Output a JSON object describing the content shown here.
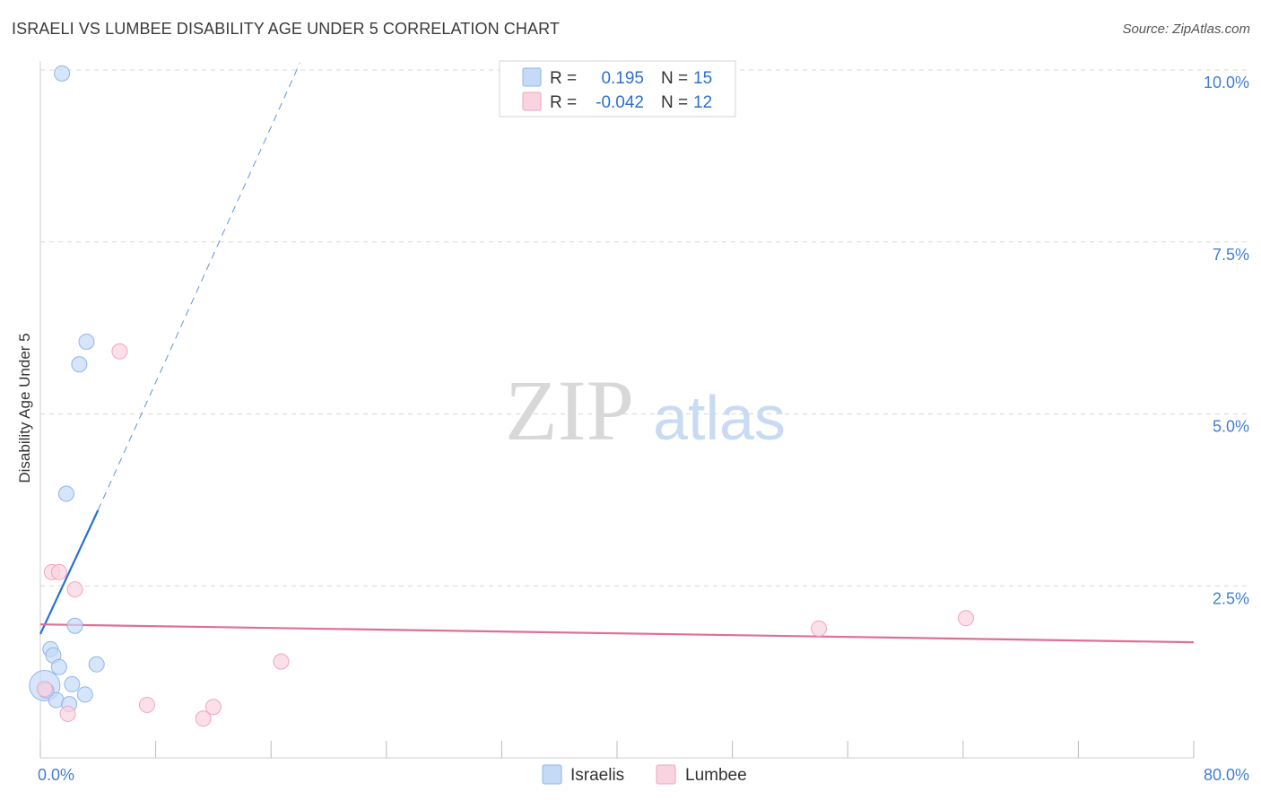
{
  "title": "ISRAELI VS LUMBEE DISABILITY AGE UNDER 5 CORRELATION CHART",
  "source": "Source: ZipAtlas.com",
  "watermark": {
    "zip": "ZIP",
    "atlas": "atlas"
  },
  "colors": {
    "israelis": "#8fb6ea",
    "israelis_fill": "#c5daf6",
    "israelis_line": "#2b6fd6",
    "lumbee": "#f2a6bd",
    "lumbee_fill": "#f9d3df",
    "lumbee_line": "#e06e98",
    "tick_label": "#3f7fd6",
    "grid": "#d8d8d8"
  },
  "chart_data": {
    "type": "scatter",
    "ylabel": "Disability Age Under 5",
    "xlim": [
      0,
      80
    ],
    "ylim": [
      0,
      10
    ],
    "x_ticks": [
      {
        "value": 0,
        "label": "0.0%"
      },
      {
        "value": 80,
        "label": "80.0%"
      }
    ],
    "y_ticks": [
      {
        "value": 2.5,
        "label": "2.5%"
      },
      {
        "value": 5.0,
        "label": "5.0%"
      },
      {
        "value": 7.5,
        "label": "7.5%"
      },
      {
        "value": 10.0,
        "label": "10.0%"
      }
    ],
    "grid": true,
    "legend": {
      "rows": [
        {
          "r_label": "R =",
          "r_value": "0.195",
          "n_label": "N =",
          "n_value": "15"
        },
        {
          "r_label": "R =",
          "r_value": "-0.042",
          "n_label": "N =",
          "n_value": "12"
        }
      ],
      "bottom": [
        "Israelis",
        "Lumbee"
      ]
    },
    "series": [
      {
        "name": "Israelis",
        "points": [
          {
            "x": 1.5,
            "y": 9.95
          },
          {
            "x": 3.2,
            "y": 6.05
          },
          {
            "x": 2.7,
            "y": 5.72
          },
          {
            "x": 1.8,
            "y": 3.84
          },
          {
            "x": 2.4,
            "y": 1.92
          },
          {
            "x": 0.7,
            "y": 1.58
          },
          {
            "x": 0.9,
            "y": 1.49
          },
          {
            "x": 1.3,
            "y": 1.32
          },
          {
            "x": 3.9,
            "y": 1.36
          },
          {
            "x": 0.3,
            "y": 1.05,
            "size": "large"
          },
          {
            "x": 2.2,
            "y": 1.07
          },
          {
            "x": 3.1,
            "y": 0.92
          },
          {
            "x": 1.1,
            "y": 0.84
          },
          {
            "x": 2.0,
            "y": 0.78
          },
          {
            "x": 0.4,
            "y": 0.98
          }
        ],
        "trend": {
          "x0": 0,
          "y0": 1.8,
          "x1": 4.0,
          "y1": 3.6,
          "dashed_to_x": 18,
          "dashed_to_y": 10.1
        }
      },
      {
        "name": "Lumbee",
        "points": [
          {
            "x": 5.5,
            "y": 5.91
          },
          {
            "x": 0.8,
            "y": 2.7
          },
          {
            "x": 1.3,
            "y": 2.7
          },
          {
            "x": 2.4,
            "y": 2.45
          },
          {
            "x": 16.7,
            "y": 1.4
          },
          {
            "x": 0.3,
            "y": 1.0
          },
          {
            "x": 7.4,
            "y": 0.77
          },
          {
            "x": 12.0,
            "y": 0.74
          },
          {
            "x": 11.3,
            "y": 0.57
          },
          {
            "x": 1.9,
            "y": 0.64
          },
          {
            "x": 54.0,
            "y": 1.88
          },
          {
            "x": 64.2,
            "y": 2.03
          }
        ],
        "trend": {
          "x0": 0,
          "y0": 1.94,
          "x1": 80,
          "y1": 1.68
        }
      }
    ]
  }
}
